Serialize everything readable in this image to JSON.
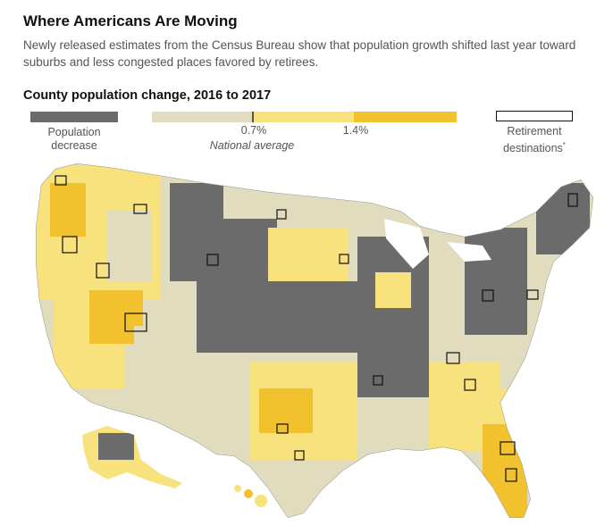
{
  "header": {
    "title": "Where Americans Are Moving",
    "subtitle": "Newly released estimates from the Census Bureau show that population growth shifted last year toward suburbs and less congested places favored by retirees."
  },
  "map": {
    "title": "County population change, 2016 to 2017",
    "legend": {
      "decrease_line1": "Population",
      "decrease_line2": "decrease",
      "tick_1": "0.7%",
      "tick_2": "1.4%",
      "average_label": "National average",
      "retire_line1": "Retirement",
      "retire_line2": "destinations",
      "retire_note_mark": "*"
    },
    "colors": {
      "decrease": "#6b6b6b",
      "low_growth": "#e2dcbf",
      "mid_growth": "#f7e27e",
      "high_growth": "#f2c12e",
      "retirement_outline": "#111111"
    }
  }
}
